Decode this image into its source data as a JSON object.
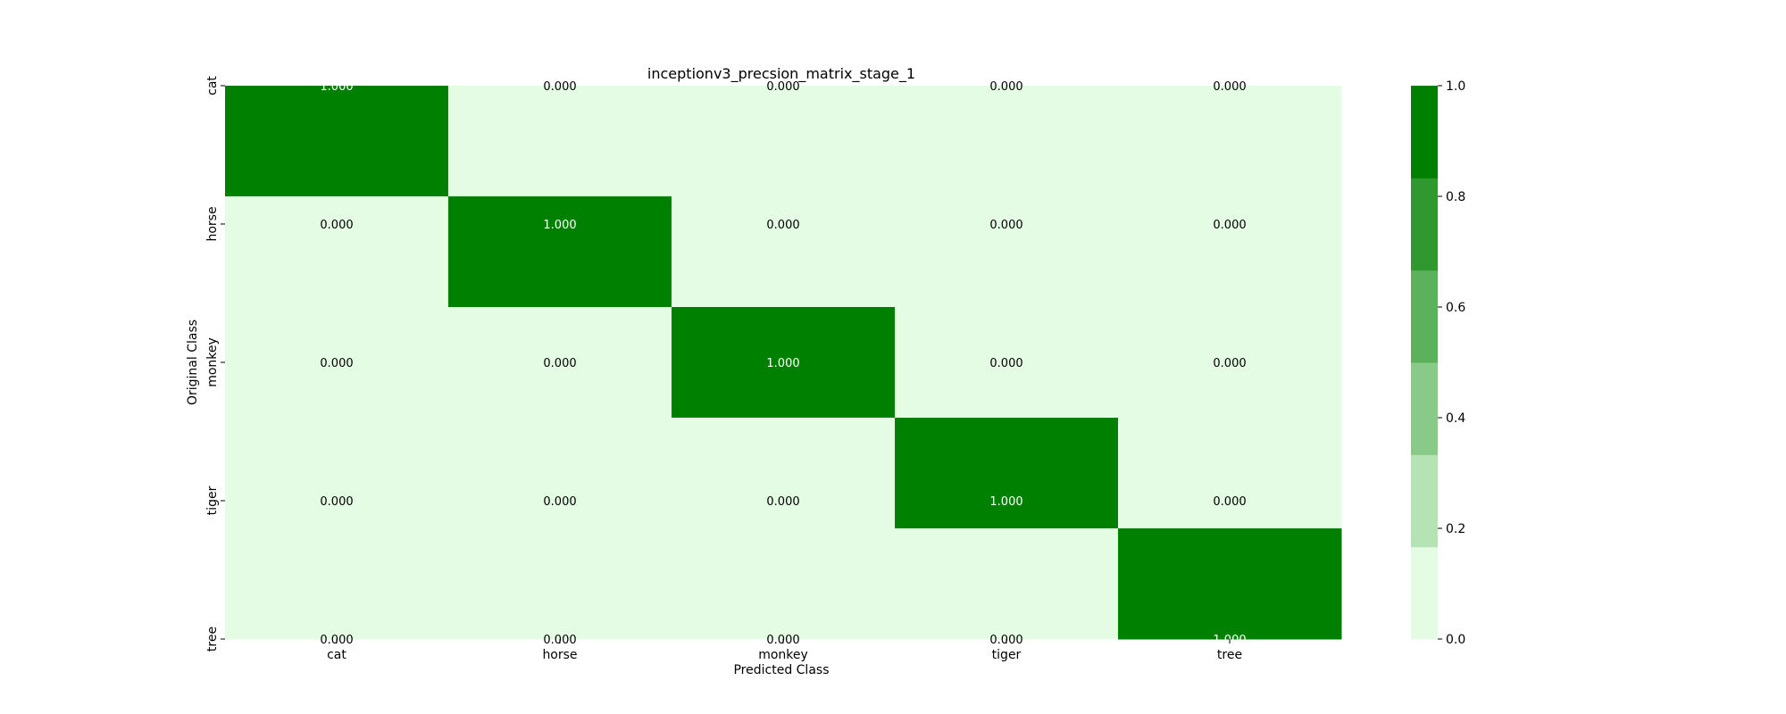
{
  "chart_data": {
    "type": "heatmap",
    "title": "inceptionv3_precsion_matrix_stage_1",
    "xlabel": "Predicted Class",
    "ylabel": "Original Class",
    "x_categories": [
      "cat",
      "horse",
      "monkey",
      "tiger",
      "tree"
    ],
    "y_categories": [
      "cat",
      "horse",
      "monkey",
      "tiger",
      "tree"
    ],
    "values": [
      [
        1.0,
        0.0,
        0.0,
        0.0,
        0.0
      ],
      [
        0.0,
        1.0,
        0.0,
        0.0,
        0.0
      ],
      [
        0.0,
        0.0,
        1.0,
        0.0,
        0.0
      ],
      [
        0.0,
        0.0,
        0.0,
        1.0,
        0.0
      ],
      [
        0.0,
        0.0,
        0.0,
        0.0,
        1.0
      ]
    ],
    "cell_labels": [
      [
        "1.000",
        "0.000",
        "0.000",
        "0.000",
        "0.000"
      ],
      [
        "0.000",
        "1.000",
        "0.000",
        "0.000",
        "0.000"
      ],
      [
        "0.000",
        "0.000",
        "1.000",
        "0.000",
        "0.000"
      ],
      [
        "0.000",
        "0.000",
        "0.000",
        "1.000",
        "0.000"
      ],
      [
        "0.000",
        "0.000",
        "0.000",
        "0.000",
        "1.000"
      ]
    ],
    "colorbar": {
      "range": [
        0.0,
        1.0
      ],
      "ticks": [
        "0.0",
        "0.2",
        "0.4",
        "0.6",
        "0.8",
        "1.0"
      ],
      "colors": [
        "#e3fce3",
        "#b6e3b6",
        "#89ca89",
        "#5cb15c",
        "#2f982f",
        "#008000"
      ]
    },
    "legend": "colorbar-right"
  }
}
